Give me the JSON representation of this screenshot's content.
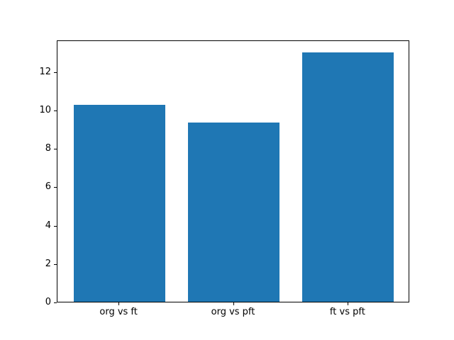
{
  "figure": {
    "background": "#ffffff",
    "spine_color": "#000000",
    "tick_color": "#000000",
    "text_color": "#000000"
  },
  "chart_data": {
    "type": "bar",
    "title": "",
    "xlabel": "",
    "ylabel": "",
    "categories": [
      "org vs ft",
      "org vs pft",
      "ft vs pft"
    ],
    "values": [
      10.25,
      9.35,
      13.0
    ],
    "bar_color": "#1f77b4",
    "bar_width": 0.8,
    "x_positions": [
      0,
      1,
      2
    ],
    "xlim": [
      -0.54,
      2.54
    ],
    "ylim": [
      0,
      13.65
    ],
    "yticks": [
      0,
      2,
      4,
      6,
      8,
      10,
      12
    ],
    "grid": false,
    "legend_position": "none"
  }
}
